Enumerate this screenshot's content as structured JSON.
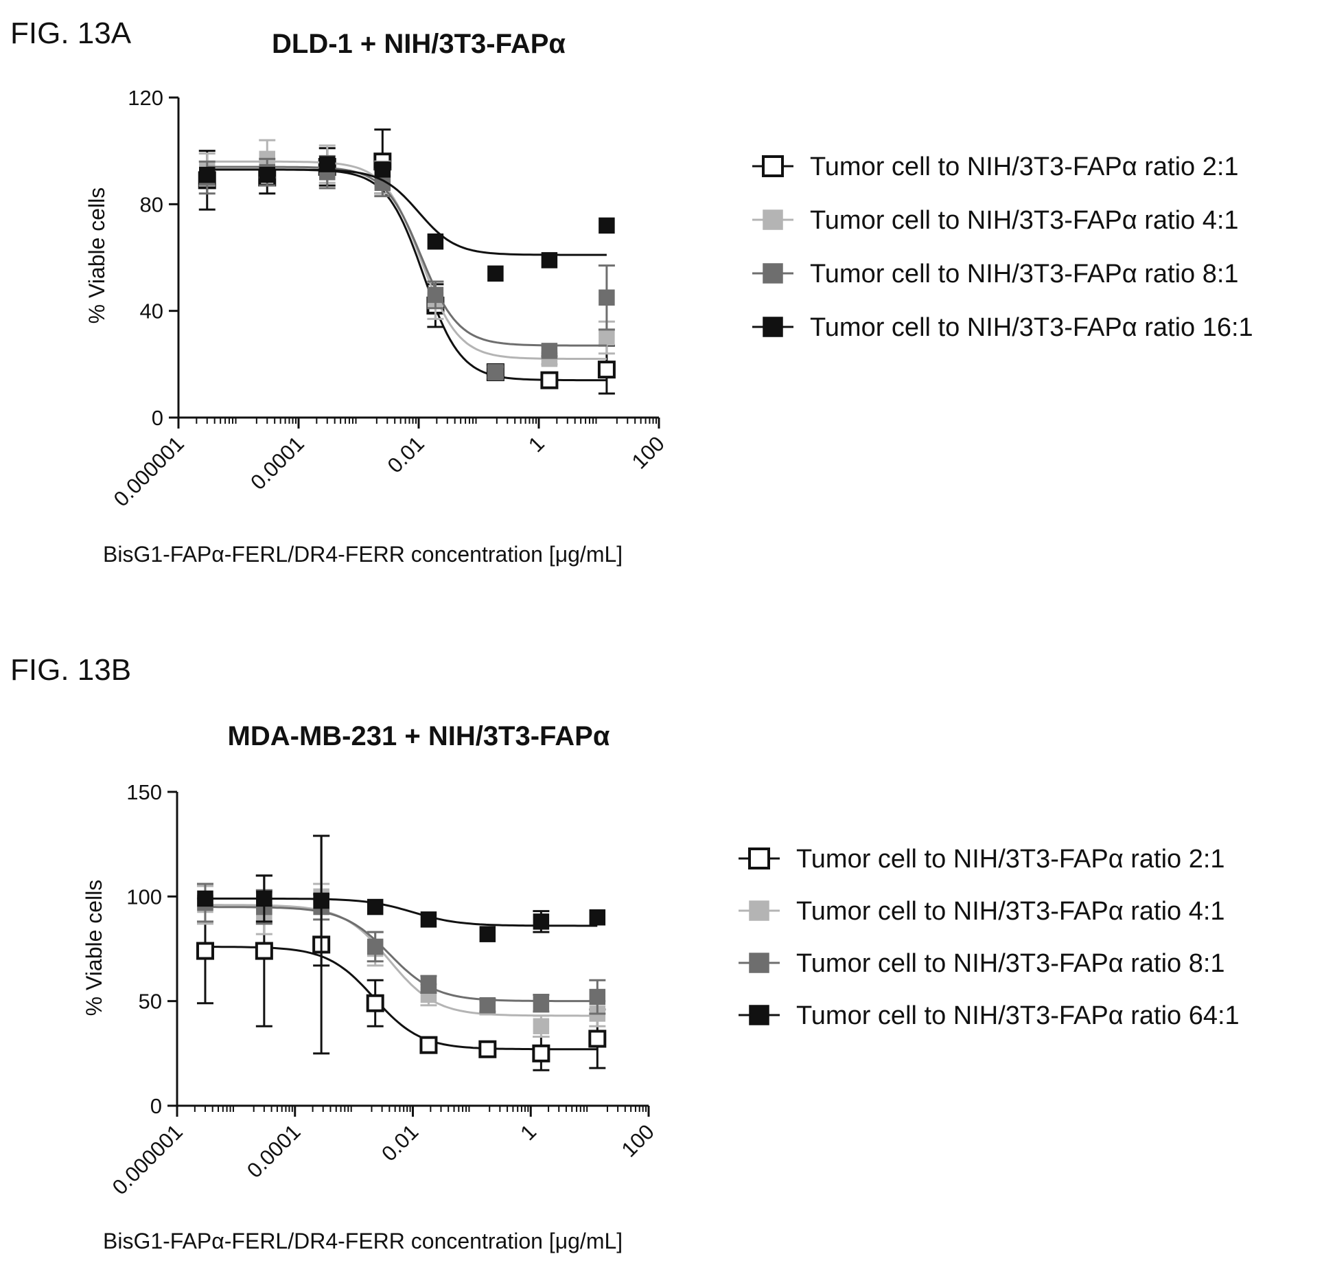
{
  "chart_data": [
    {
      "type": "scatter",
      "figure_label": "FIG. 13A",
      "title": "DLD-1 + NIH/3T3-FAPα",
      "xlabel": "BisG1-FAPα-FERL/DR4-FERR concentration [μg/mL]",
      "ylabel": "% Viable cells",
      "xscale": "log",
      "xlim": [
        1e-06,
        100
      ],
      "ylim": [
        0,
        120
      ],
      "xticks": [
        1e-06,
        0.0001,
        0.01,
        1,
        100
      ],
      "xtick_labels": [
        "0.000001",
        "0.0001",
        "0.01",
        "1",
        "100"
      ],
      "yticks": [
        0,
        40,
        80,
        120
      ],
      "ytick_labels": [
        "0",
        "40",
        "80",
        "120"
      ],
      "legend_position": "right",
      "x": [
        3e-06,
        3e-05,
        0.0003,
        0.0025,
        0.019,
        0.19,
        1.5,
        13.5
      ],
      "series": [
        {
          "name": "Tumor cell to NIH/3T3-FAPα ratio 2:1",
          "color": "#111111",
          "marker": "open-square",
          "values": [
            89,
            90,
            94,
            96,
            42,
            17,
            14,
            18
          ],
          "errors": [
            11,
            6,
            7,
            12,
            8,
            2,
            2,
            9
          ],
          "fit": {
            "top": 93,
            "bottom": 14,
            "ec50": 0.012,
            "hill": 1.4
          }
        },
        {
          "name": "Tumor cell to NIH/3T3-FAPα ratio 4:1",
          "color": "#b4b4b4",
          "marker": "filled-square",
          "values": [
            93,
            97,
            95,
            90,
            44,
            17,
            22,
            30
          ],
          "errors": [
            6,
            7,
            7,
            6,
            7,
            2,
            2,
            6
          ],
          "fit": {
            "top": 96,
            "bottom": 22,
            "ec50": 0.011,
            "hill": 1.4
          }
        },
        {
          "name": "Tumor cell to NIH/3T3-FAPα ratio 8:1",
          "color": "#6e6e6e",
          "marker": "filled-square",
          "values": [
            90,
            92,
            92,
            88,
            46,
            17,
            25,
            45
          ],
          "errors": [
            6,
            5,
            6,
            5,
            5,
            2,
            2,
            12
          ],
          "fit": {
            "top": 94,
            "bottom": 27,
            "ec50": 0.011,
            "hill": 1.4
          }
        },
        {
          "name": "Tumor cell to NIH/3T3-FAPα ratio 16:1",
          "color": "#111111",
          "marker": "filled-square",
          "values": [
            91,
            91,
            95,
            93,
            66,
            54,
            59,
            72
          ],
          "errors": [
            0,
            0,
            0,
            0,
            0,
            0,
            0,
            0
          ],
          "fit": {
            "top": 93,
            "bottom": 61,
            "ec50": 0.01,
            "hill": 1.4
          }
        }
      ]
    },
    {
      "type": "scatter",
      "figure_label": "FIG. 13B",
      "title": "MDA-MB-231 + NIH/3T3-FAPα",
      "xlabel": "BisG1-FAPα-FERL/DR4-FERR concentration [μg/mL]",
      "ylabel": "% Viable cells",
      "xscale": "log",
      "xlim": [
        1e-06,
        100
      ],
      "ylim": [
        0,
        150
      ],
      "xticks": [
        1e-06,
        0.0001,
        0.01,
        1,
        100
      ],
      "xtick_labels": [
        "0.000001",
        "0.0001",
        "0.01",
        "1",
        "100"
      ],
      "yticks": [
        0,
        50,
        100,
        150
      ],
      "ytick_labels": [
        "0",
        "50",
        "100",
        "150"
      ],
      "legend_position": "right",
      "x": [
        3e-06,
        3e-05,
        0.00028,
        0.0023,
        0.0185,
        0.185,
        1.5,
        13.5
      ],
      "series": [
        {
          "name": "Tumor cell to NIH/3T3-FAPα ratio 2:1",
          "color": "#111111",
          "marker": "open-square",
          "values": [
            74,
            74,
            77,
            49,
            29,
            27,
            25,
            32
          ],
          "errors": [
            25,
            36,
            52,
            11,
            3,
            2,
            8,
            14
          ],
          "fit": {
            "top": 76,
            "bottom": 27,
            "ec50": 0.0022,
            "hill": 1.1
          }
        },
        {
          "name": "Tumor cell to NIH/3T3-FAPα ratio 4:1",
          "color": "#b4b4b4",
          "marker": "filled-square",
          "values": [
            96,
            92,
            100,
            75,
            53,
            47,
            38,
            44
          ],
          "errors": [
            9,
            10,
            6,
            8,
            5,
            3,
            5,
            6
          ],
          "fit": {
            "top": 96,
            "bottom": 43,
            "ec50": 0.004,
            "hill": 1.1
          }
        },
        {
          "name": "Tumor cell to NIH/3T3-FAPα ratio 8:1",
          "color": "#6e6e6e",
          "marker": "filled-square",
          "values": [
            97,
            95,
            95,
            76,
            58,
            48,
            49,
            52
          ],
          "errors": [
            9,
            8,
            6,
            7,
            4,
            3,
            4,
            8
          ],
          "fit": {
            "top": 95,
            "bottom": 50,
            "ec50": 0.004,
            "hill": 1.1
          }
        },
        {
          "name": "Tumor cell to NIH/3T3-FAPα ratio 64:1",
          "color": "#111111",
          "marker": "filled-square",
          "values": [
            99,
            99,
            98,
            95,
            89,
            82,
            88,
            90
          ],
          "errors": [
            0,
            11,
            31,
            0,
            0,
            0,
            5,
            0
          ],
          "fit": {
            "top": 99,
            "bottom": 86,
            "ec50": 0.01,
            "hill": 1.1
          }
        }
      ]
    }
  ]
}
